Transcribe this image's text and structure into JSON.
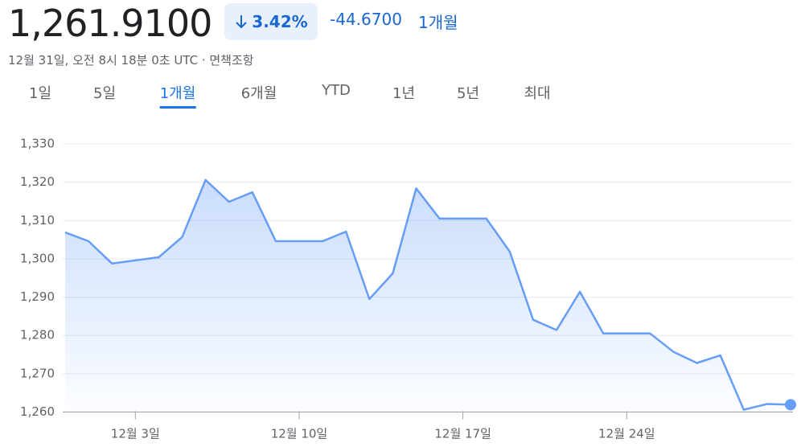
{
  "header": {
    "price": "1,261.9100",
    "change_percent": "3.42%",
    "change": "-44.6700",
    "period": "1개월",
    "timestamp": "12월 31일, 오전 8시 18분 0초 UTC · 면책조항"
  },
  "tabs": {
    "items": [
      "1일",
      "5일",
      "1개월",
      "6개월",
      "YTD",
      "1년",
      "5년",
      "최대"
    ],
    "active": "1개월"
  },
  "chart_data": {
    "type": "line",
    "categories": [
      null,
      null,
      null,
      "12월 3일",
      null,
      null,
      null,
      null,
      null,
      null,
      "12월 10일",
      null,
      null,
      null,
      null,
      null,
      null,
      "12월 17일",
      null,
      null,
      null,
      null,
      null,
      null,
      "12월 24일",
      null,
      null,
      null,
      null,
      null,
      null,
      null
    ],
    "values": [
      1306.9,
      1304.6,
      1298.8,
      1299.6,
      1300.4,
      1305.7,
      1320.6,
      1314.9,
      1317.4,
      1304.6,
      1304.6,
      1304.6,
      1307.1,
      1289.5,
      1296.2,
      1318.4,
      1310.5,
      1310.5,
      1310.5,
      1301.9,
      1284.1,
      1281.4,
      1291.4,
      1280.5,
      1280.5,
      1280.5,
      1275.7,
      1272.8,
      1274.8,
      1260.6,
      1262.1,
      1261.91
    ],
    "color": "#669df6",
    "ylim": [
      1258,
      1334
    ],
    "yticks": [
      {
        "value": 1260,
        "label": "1,260"
      },
      {
        "value": 1270,
        "label": "1,270"
      },
      {
        "value": 1280,
        "label": "1,280"
      },
      {
        "value": 1290,
        "label": "1,290"
      },
      {
        "value": 1300,
        "label": "1,300"
      },
      {
        "value": 1310,
        "label": "1,310"
      },
      {
        "value": 1320,
        "label": "1,320"
      },
      {
        "value": 1330,
        "label": "1,330"
      }
    ],
    "grid": true
  }
}
